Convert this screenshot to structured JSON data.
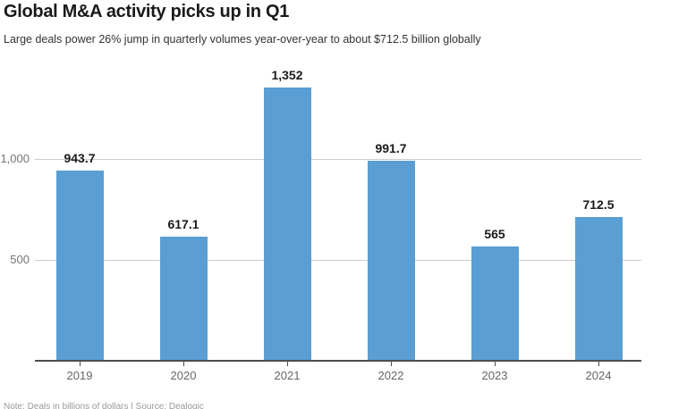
{
  "header": {
    "title": "Global M&A activity picks up in Q1",
    "subtitle": "Large deals power 26% jump in quarterly volumes year-over-year to about $712.5 billion globally"
  },
  "chart_data": {
    "type": "bar",
    "categories": [
      "2019",
      "2020",
      "2021",
      "2022",
      "2023",
      "2024"
    ],
    "values": [
      943.7,
      617.1,
      1352,
      991.7,
      565,
      712.5
    ],
    "value_labels": [
      "943.7",
      "617.1",
      "1,352",
      "991.7",
      "565",
      "712.5"
    ],
    "title": "Global M&A activity picks up in Q1",
    "subtitle": "Large deals power 26% jump in quarterly volumes year-over-year to about $712.5 billion globally",
    "xlabel": "",
    "ylabel": "",
    "ylim": [
      0,
      1450
    ],
    "yticks": [
      {
        "value": 500,
        "label": "500"
      },
      {
        "value": 1000,
        "label": "1,000"
      }
    ],
    "grid": "horizontal",
    "legend": "none",
    "bar_color": "#5A9ED3"
  },
  "colors": {
    "bar": "#5A9ED3",
    "gridline": "#cccccc",
    "axis": "#4d4d4d",
    "title_text": "#1a1a1a",
    "muted_text": "#757575"
  },
  "footer": {
    "note": "Note: Deals in billions of dollars | Source: Dealogic"
  }
}
